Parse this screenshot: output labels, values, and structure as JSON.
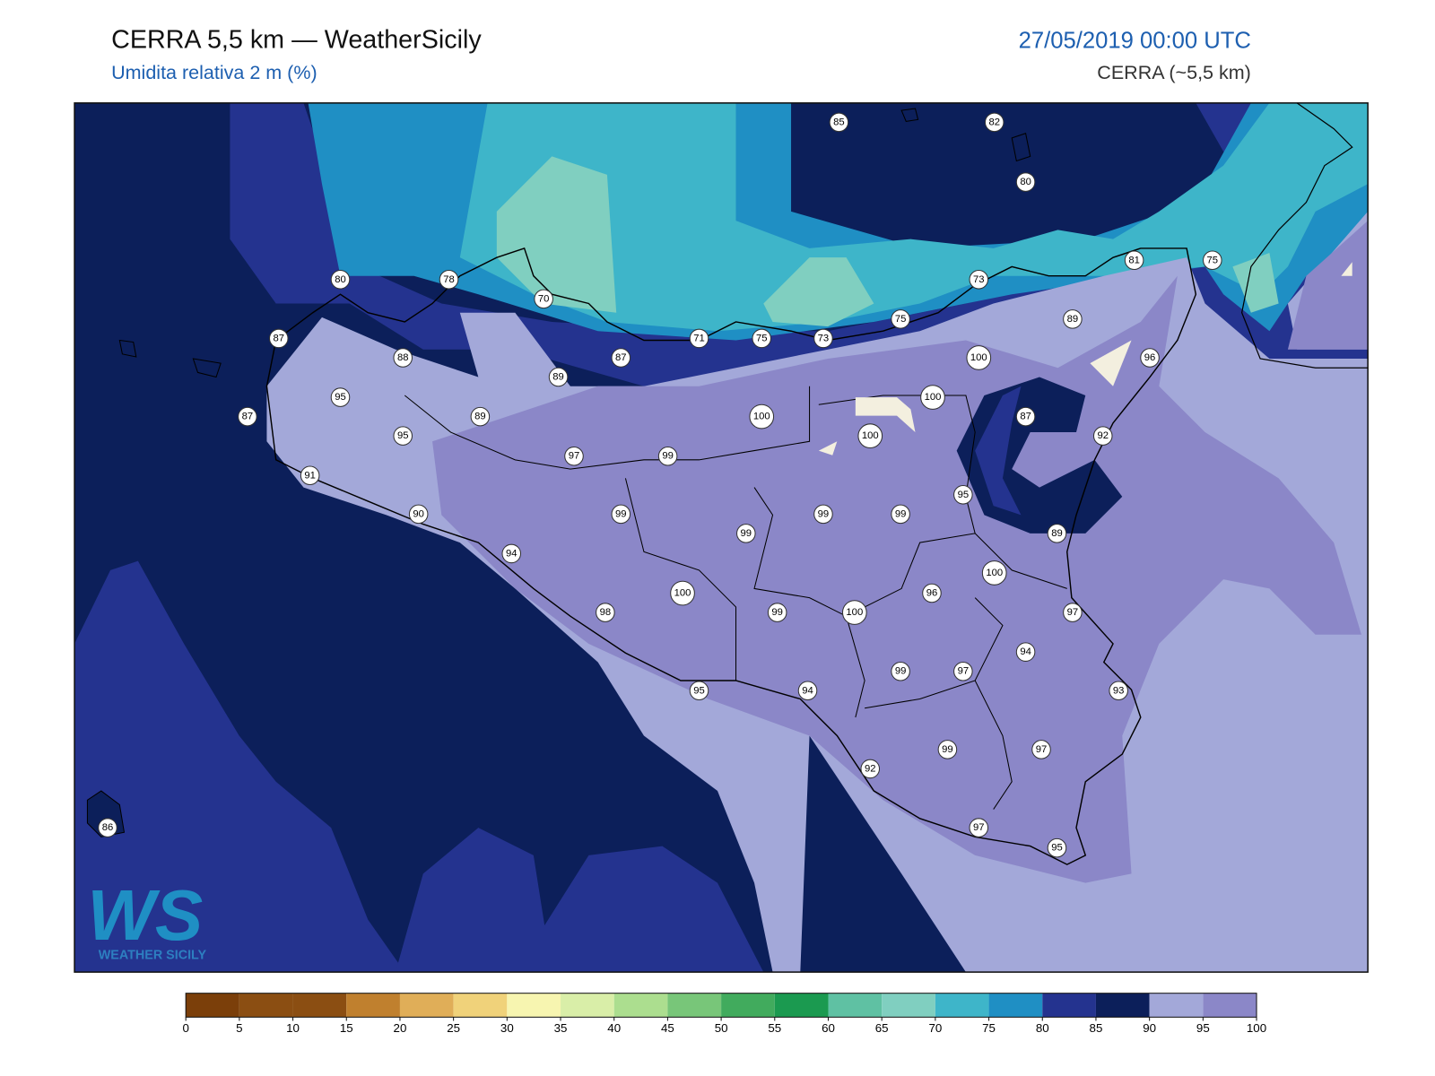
{
  "header": {
    "title": "CERRA 5,5 km — WeatherSicily",
    "subtitle": "Umidita relativa 2 m (%)",
    "datetime": "27/05/2019 00:00 UTC",
    "model": "CERRA (~5,5 km)"
  },
  "stations": [
    85,
    82,
    80,
    80,
    78,
    70,
    73,
    81,
    75,
    71,
    75,
    73,
    75,
    89,
    87,
    88,
    87,
    100,
    96,
    89,
    95,
    100,
    87,
    89,
    100,
    87,
    95,
    100,
    92,
    97,
    99,
    91,
    95,
    90,
    99,
    99,
    99,
    99,
    89,
    94,
    100,
    96,
    100,
    98,
    99,
    100,
    97,
    94,
    99,
    97,
    95,
    94,
    93,
    92,
    99,
    97,
    97,
    95,
    86
  ],
  "colorbar": {
    "ticks": [
      0,
      5,
      10,
      15,
      20,
      25,
      30,
      35,
      40,
      45,
      50,
      55,
      60,
      65,
      70,
      75,
      80,
      85,
      90,
      95,
      100
    ],
    "colors": [
      "#7b3f0a",
      "#8b4e12",
      "#8b4e12",
      "#c0802e",
      "#e0ae58",
      "#f0d27a",
      "#f7f5b0",
      "#d9eea8",
      "#acde8f",
      "#78c679",
      "#41ab5d",
      "#1b9a50",
      "#5fc1a3",
      "#80cfc0",
      "#3eb5c9",
      "#1f8fc4",
      "#24338f",
      "#0c1f5a",
      "#a3a8d9",
      "#8b87c8"
    ]
  },
  "logo": {
    "text": "WS",
    "caption": "WEATHER SICILY"
  }
}
